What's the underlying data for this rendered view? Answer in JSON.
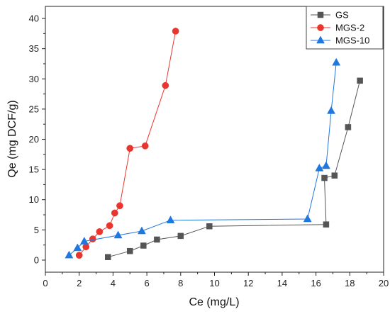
{
  "chart_data": {
    "type": "line",
    "xlabel": "Ce (mg/L)",
    "ylabel": "Qe (mg DCF/g)",
    "xlim": [
      0,
      20
    ],
    "ylim": [
      -2,
      42
    ],
    "xticks": [
      0,
      2,
      4,
      6,
      8,
      10,
      12,
      14,
      16,
      18,
      20
    ],
    "yticks": [
      0,
      5,
      10,
      15,
      20,
      25,
      30,
      35,
      40
    ],
    "grid": false,
    "legend_position": "top-right",
    "series": [
      {
        "name": "GS",
        "color": "#555555",
        "marker": "square",
        "x": [
          3.7,
          5.0,
          5.8,
          6.6,
          8.0,
          9.7,
          16.6,
          16.5,
          17.1,
          17.9,
          18.6
        ],
        "y": [
          0.5,
          1.5,
          2.4,
          3.4,
          4.0,
          5.6,
          5.9,
          13.6,
          14.0,
          22.0,
          29.7
        ]
      },
      {
        "name": "MGS-2",
        "color": "#e8362f",
        "marker": "circle",
        "x": [
          2.0,
          2.4,
          2.8,
          3.2,
          3.8,
          4.1,
          4.4,
          5.0,
          5.9,
          7.1,
          7.7
        ],
        "y": [
          0.8,
          2.2,
          3.5,
          4.7,
          5.7,
          7.8,
          9.0,
          18.5,
          18.9,
          28.9,
          37.9
        ]
      },
      {
        "name": "MGS-10",
        "color": "#1f77e0",
        "marker": "triangle",
        "x": [
          1.4,
          1.9,
          2.3,
          4.3,
          5.7,
          7.4,
          15.5,
          16.2,
          16.6,
          16.9,
          17.2
        ],
        "y": [
          0.8,
          2.0,
          3.1,
          4.1,
          4.8,
          6.6,
          6.8,
          15.2,
          15.6,
          24.7,
          32.7
        ]
      }
    ]
  }
}
